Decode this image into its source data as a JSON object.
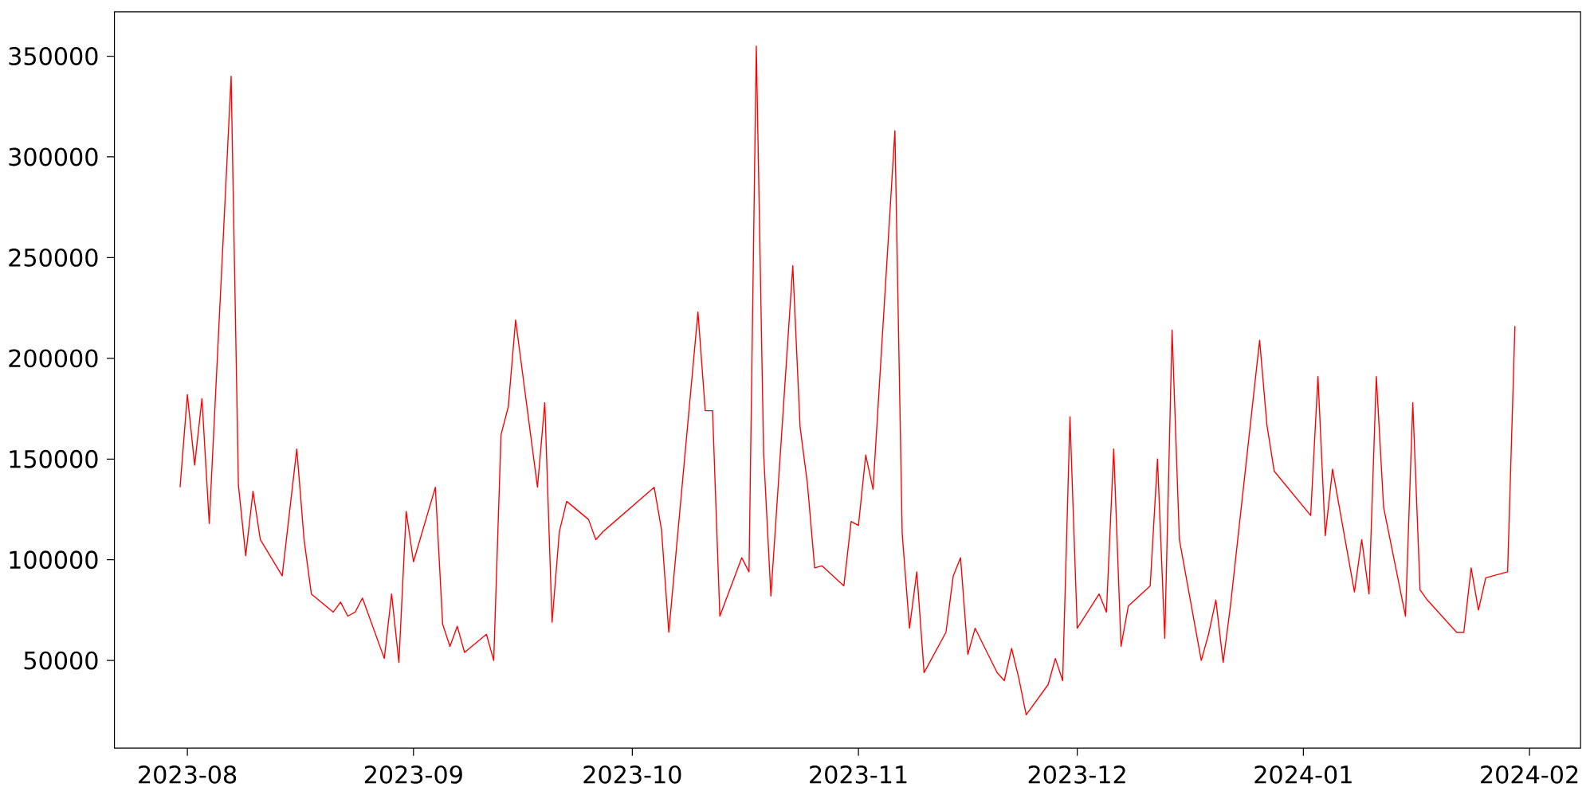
{
  "chart_data": {
    "type": "line",
    "color": "#ff0000",
    "x": [
      "2023-07-31",
      "2023-08-01",
      "2023-08-02",
      "2023-08-03",
      "2023-08-04",
      "2023-08-07",
      "2023-08-08",
      "2023-08-09",
      "2023-08-10",
      "2023-08-11",
      "2023-08-14",
      "2023-08-16",
      "2023-08-17",
      "2023-08-18",
      "2023-08-21",
      "2023-08-22",
      "2023-08-23",
      "2023-08-24",
      "2023-08-25",
      "2023-08-28",
      "2023-08-29",
      "2023-08-30",
      "2023-08-31",
      "2023-09-01",
      "2023-09-04",
      "2023-09-05",
      "2023-09-06",
      "2023-09-07",
      "2023-09-08",
      "2023-09-11",
      "2023-09-12",
      "2023-09-13",
      "2023-09-14",
      "2023-09-15",
      "2023-09-18",
      "2023-09-19",
      "2023-09-20",
      "2023-09-21",
      "2023-09-22",
      "2023-09-25",
      "2023-09-26",
      "2023-09-27",
      "2023-10-04",
      "2023-10-05",
      "2023-10-06",
      "2023-10-10",
      "2023-10-11",
      "2023-10-12",
      "2023-10-13",
      "2023-10-16",
      "2023-10-17",
      "2023-10-18",
      "2023-10-19",
      "2023-10-20",
      "2023-10-23",
      "2023-10-24",
      "2023-10-25",
      "2023-10-26",
      "2023-10-27",
      "2023-10-30",
      "2023-10-31",
      "2023-11-01",
      "2023-11-02",
      "2023-11-03",
      "2023-11-06",
      "2023-11-07",
      "2023-11-08",
      "2023-11-09",
      "2023-11-10",
      "2023-11-13",
      "2023-11-14",
      "2023-11-15",
      "2023-11-16",
      "2023-11-17",
      "2023-11-20",
      "2023-11-21",
      "2023-11-22",
      "2023-11-23",
      "2023-11-24",
      "2023-11-27",
      "2023-11-28",
      "2023-11-29",
      "2023-11-30",
      "2023-12-01",
      "2023-12-04",
      "2023-12-05",
      "2023-12-06",
      "2023-12-07",
      "2023-12-08",
      "2023-12-11",
      "2023-12-12",
      "2023-12-13",
      "2023-12-14",
      "2023-12-15",
      "2023-12-18",
      "2023-12-19",
      "2023-12-20",
      "2023-12-21",
      "2023-12-22",
      "2023-12-26",
      "2023-12-27",
      "2023-12-28",
      "2024-01-02",
      "2024-01-03",
      "2024-01-04",
      "2024-01-05",
      "2024-01-08",
      "2024-01-09",
      "2024-01-10",
      "2024-01-11",
      "2024-01-12",
      "2024-01-15",
      "2024-01-16",
      "2024-01-17",
      "2024-01-18",
      "2024-01-22",
      "2024-01-23",
      "2024-01-24",
      "2024-01-25",
      "2024-01-26",
      "2024-01-29",
      "2024-01-30"
    ],
    "values": [
      136000,
      182000,
      147000,
      180000,
      118000,
      340000,
      137000,
      102000,
      134000,
      110000,
      92000,
      155000,
      110000,
      83000,
      74000,
      79000,
      72000,
      74000,
      81000,
      51000,
      83000,
      49000,
      124000,
      99000,
      136000,
      68000,
      57000,
      67000,
      54000,
      63000,
      50000,
      162000,
      176000,
      219000,
      136000,
      178000,
      69000,
      114000,
      129000,
      120000,
      110000,
      114000,
      136000,
      115000,
      64000,
      223000,
      174000,
      174000,
      72000,
      101000,
      94000,
      355000,
      153000,
      82000,
      246000,
      166000,
      138000,
      96000,
      97000,
      87000,
      119000,
      117000,
      152000,
      135000,
      313000,
      113000,
      66000,
      94000,
      44000,
      64000,
      92000,
      101000,
      53000,
      66000,
      44000,
      40000,
      56000,
      41000,
      23000,
      38000,
      51000,
      40000,
      171000,
      66000,
      83000,
      74000,
      155000,
      57000,
      77000,
      87000,
      150000,
      61000,
      214000,
      110000,
      50000,
      63000,
      80000,
      49000,
      77000,
      209000,
      167000,
      144000,
      122000,
      191000,
      112000,
      145000,
      84000,
      110000,
      83000,
      191000,
      126000,
      72000,
      178000,
      85000,
      80000,
      64000,
      64000,
      96000,
      75000,
      91000,
      94000,
      216000
    ],
    "xlim": [
      "2023-07-22",
      "2024-02-08"
    ],
    "ylim": [
      6500,
      372000
    ],
    "xticks": [
      {
        "value": "2023-08-01",
        "label": "2023-08"
      },
      {
        "value": "2023-09-01",
        "label": "2023-09"
      },
      {
        "value": "2023-10-01",
        "label": "2023-10"
      },
      {
        "value": "2023-11-01",
        "label": "2023-11"
      },
      {
        "value": "2023-12-01",
        "label": "2023-12"
      },
      {
        "value": "2024-01-01",
        "label": "2024-01"
      },
      {
        "value": "2024-02-01",
        "label": "2024-02"
      }
    ],
    "yticks": [
      50000,
      100000,
      150000,
      200000,
      250000,
      300000,
      350000
    ]
  }
}
